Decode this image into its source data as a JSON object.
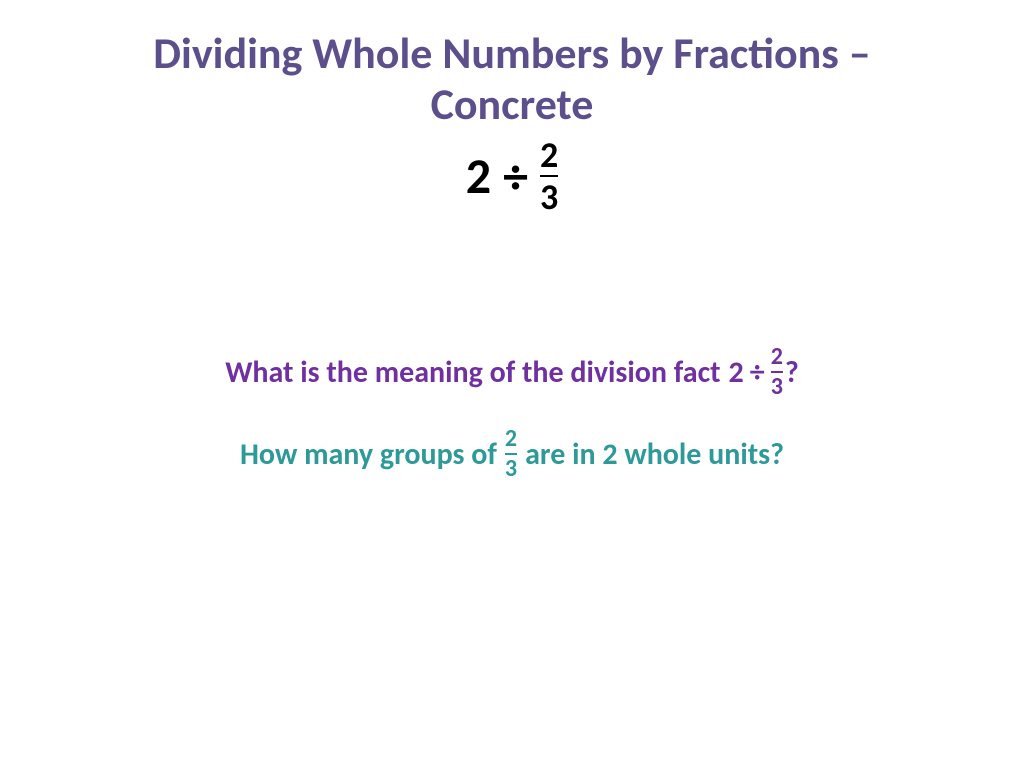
{
  "colors": {
    "title": "#5d4e8c",
    "equation": "#000000",
    "question1": "#7030a0",
    "question2": "#2e9999",
    "background": "#ffffff"
  },
  "fonts": {
    "title_size": 44,
    "equation_whole_size": 50,
    "equation_frac_size": 36,
    "question_size": 30,
    "question_frac_size": 24,
    "frac_bar_width": 2
  },
  "title": {
    "line1": "Dividing Whole Numbers by Fractions –",
    "line2": "Concrete"
  },
  "main_equation": {
    "whole": "2",
    "operator": "÷",
    "numerator": "2",
    "denominator": "3"
  },
  "question1": {
    "prefix": "What is the meaning of the division fact",
    "eq_whole": "2",
    "eq_op": "÷",
    "eq_num": "2",
    "eq_den": "3",
    "suffix": "?"
  },
  "question2": {
    "prefix": "How many groups of",
    "eq_num": "2",
    "eq_den": "3",
    "suffix": "are in 2 whole units?"
  }
}
